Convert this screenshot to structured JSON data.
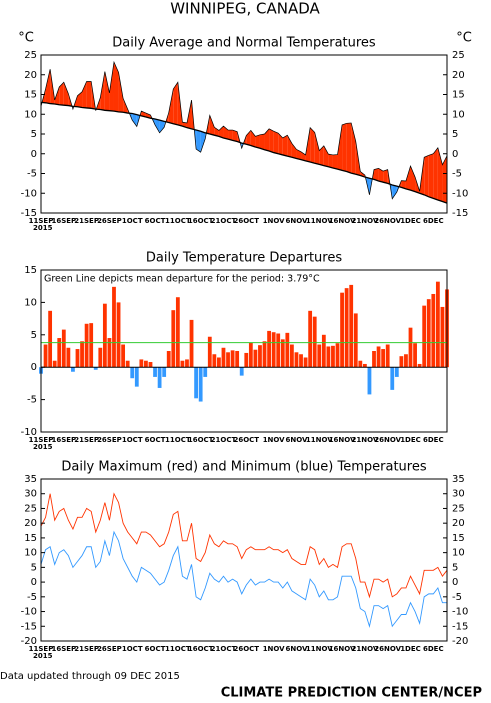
{
  "title": "WINNIPEG, CANADA",
  "chart_data": [
    {
      "type": "area",
      "title": "Daily Average and Normal Temperatures",
      "ylabel": "°C",
      "y2label": "°C",
      "right_axis": true,
      "x_year": "2015",
      "categories": [
        "11SEP",
        null,
        null,
        null,
        null,
        "16SEP",
        null,
        null,
        null,
        null,
        "21SEP",
        null,
        null,
        null,
        null,
        "26SEP",
        null,
        null,
        null,
        null,
        "1OCT",
        null,
        null,
        null,
        null,
        "6OCT",
        null,
        null,
        null,
        null,
        "11OCT",
        null,
        null,
        null,
        null,
        "16OCT",
        null,
        null,
        null,
        null,
        "21OCT",
        null,
        null,
        null,
        null,
        "26OCT",
        null,
        null,
        null,
        null,
        null,
        "1NOV",
        null,
        null,
        null,
        null,
        "6NOV",
        null,
        null,
        null,
        null,
        "11NOV",
        null,
        null,
        null,
        null,
        "16NOV",
        null,
        null,
        null,
        null,
        "21NOV",
        null,
        null,
        null,
        null,
        "26NOV",
        null,
        null,
        null,
        null,
        "1DEC",
        null,
        null,
        null,
        null,
        "6DEC",
        null,
        null,
        null
      ],
      "ylim": [
        -15,
        25
      ],
      "yticks": [
        -15,
        -10,
        -5,
        0,
        5,
        10,
        15,
        20,
        25
      ],
      "fill_above": "#ff3300",
      "fill_below": "#3399ff",
      "series": [
        {
          "color": "#000000",
          "values": [
            12.0,
            16.4,
            21.4,
            13.6,
            16.9,
            18.1,
            15.2,
            11.3,
            14.7,
            15.7,
            18.3,
            18.3,
            10.9,
            14.2,
            20.8,
            15.4,
            23.2,
            20.6,
            14.0,
            11.3,
            8.5,
            6.9,
            10.8,
            10.3,
            9.8,
            7.3,
            5.3,
            6.7,
            10.4,
            16.4,
            18.1,
            8.0,
            7.8,
            13.6,
            1.2,
            0.4,
            3.8,
            9.7,
            6.7,
            5.9,
            7.0,
            6.0,
            6.0,
            5.6,
            1.4,
            4.6,
            5.9,
            4.4,
            4.8,
            5.0,
            6.3,
            5.7,
            5.2,
            4.0,
            4.7,
            2.6,
            1.1,
            0.5,
            -0.3,
            6.6,
            5.4,
            0.8,
            2.0,
            -0.1,
            -0.3,
            -0.2,
            7.3,
            7.7,
            7.8,
            3.1,
            -4.5,
            -5.4,
            -10.4,
            -4.0,
            -3.7,
            -4.4,
            -4.0,
            -11.4,
            -9.7,
            -6.8,
            -6.9,
            -3.1,
            -5.9,
            -9.5,
            -0.9,
            -0.4,
            0.0,
            1.5,
            -2.8,
            -0.5
          ]
        },
        {
          "color": "#000000",
          "values": [
            13.0,
            12.9,
            12.7,
            12.6,
            12.4,
            12.3,
            12.2,
            12.0,
            11.9,
            11.7,
            11.6,
            11.5,
            11.3,
            11.2,
            11.0,
            10.9,
            10.8,
            10.6,
            10.5,
            10.3,
            10.2,
            9.9,
            9.6,
            9.3,
            9.0,
            8.8,
            8.5,
            8.2,
            7.9,
            7.6,
            7.3,
            7.0,
            6.6,
            6.3,
            6.0,
            5.7,
            5.3,
            5.0,
            4.7,
            4.4,
            4.0,
            3.7,
            3.4,
            3.1,
            2.7,
            2.4,
            2.1,
            1.7,
            1.4,
            1.0,
            0.7,
            0.3,
            0.0,
            -0.3,
            -0.6,
            -0.9,
            -1.2,
            -1.5,
            -1.8,
            -2.1,
            -2.4,
            -2.7,
            -3.0,
            -3.3,
            -3.6,
            -3.9,
            -4.2,
            -4.5,
            -4.9,
            -5.2,
            -5.5,
            -5.9,
            -6.2,
            -6.5,
            -6.9,
            -7.2,
            -7.5,
            -7.9,
            -8.2,
            -8.5,
            -8.9,
            -9.2,
            -9.6,
            -10.0,
            -10.4,
            -10.9,
            -11.3,
            -11.7,
            -12.1,
            -12.5
          ]
        }
      ]
    },
    {
      "type": "bar",
      "title": "Daily Temperature Departures",
      "right_axis": false,
      "x_year": "2015",
      "categories": [
        "11SEP",
        null,
        null,
        null,
        null,
        "16SEP",
        null,
        null,
        null,
        null,
        "21SEP",
        null,
        null,
        null,
        null,
        "26SEP",
        null,
        null,
        null,
        null,
        "1OCT",
        null,
        null,
        null,
        null,
        "6OCT",
        null,
        null,
        null,
        null,
        "11OCT",
        null,
        null,
        null,
        null,
        "16OCT",
        null,
        null,
        null,
        null,
        "21OCT",
        null,
        null,
        null,
        null,
        "26OCT",
        null,
        null,
        null,
        null,
        null,
        "1NOV",
        null,
        null,
        null,
        null,
        "6NOV",
        null,
        null,
        null,
        null,
        "11NOV",
        null,
        null,
        null,
        null,
        "16NOV",
        null,
        null,
        null,
        null,
        "21NOV",
        null,
        null,
        null,
        null,
        "26NOV",
        null,
        null,
        null,
        null,
        "1DEC",
        null,
        null,
        null,
        null,
        "6DEC",
        null,
        null,
        null
      ],
      "ylim": [
        -10,
        15
      ],
      "yticks": [
        -10,
        -5,
        0,
        5,
        10,
        15
      ],
      "color_positive": "#ff3300",
      "color_negative": "#3399ff",
      "values": [
        -1.0,
        3.5,
        8.7,
        1.0,
        4.5,
        5.8,
        3.0,
        -0.7,
        2.8,
        4.0,
        6.7,
        6.8,
        -0.4,
        3.0,
        9.8,
        4.5,
        12.4,
        10.0,
        3.5,
        1.0,
        -1.7,
        -3.0,
        1.2,
        1.0,
        0.8,
        -1.5,
        -3.2,
        -1.5,
        2.5,
        8.8,
        10.8,
        1.0,
        1.2,
        7.3,
        -4.8,
        -5.3,
        -1.5,
        4.7,
        2.0,
        1.5,
        3.0,
        2.3,
        2.6,
        2.5,
        -1.3,
        2.2,
        3.8,
        2.7,
        3.4,
        4.0,
        5.6,
        5.4,
        5.2,
        4.3,
        5.3,
        3.5,
        2.3,
        2.0,
        1.5,
        8.7,
        7.8,
        3.5,
        5.0,
        3.2,
        3.3,
        3.7,
        11.5,
        12.2,
        12.7,
        8.3,
        1.0,
        0.5,
        -4.2,
        2.5,
        3.2,
        2.8,
        3.5,
        -3.5,
        -1.5,
        1.7,
        2.0,
        6.1,
        3.7,
        0.5,
        9.5,
        10.5,
        11.3,
        13.2,
        9.3,
        12.0
      ],
      "mean_departure": 3.79,
      "mean_color": "#33cc33",
      "annotation": "Green Line depicts mean departure for the period: 3.79°C"
    },
    {
      "type": "line",
      "title": "Daily Maximum (red) and Minimum (blue) Temperatures",
      "right_axis": true,
      "x_year": "2015",
      "categories": [
        "11SEP",
        null,
        null,
        null,
        null,
        "16SEP",
        null,
        null,
        null,
        null,
        "21SEP",
        null,
        null,
        null,
        null,
        "26SEP",
        null,
        null,
        null,
        null,
        "1OCT",
        null,
        null,
        null,
        null,
        "6OCT",
        null,
        null,
        null,
        null,
        "11OCT",
        null,
        null,
        null,
        null,
        "16OCT",
        null,
        null,
        null,
        null,
        "21OCT",
        null,
        null,
        null,
        null,
        "26OCT",
        null,
        null,
        null,
        null,
        null,
        "1NOV",
        null,
        null,
        null,
        null,
        "6NOV",
        null,
        null,
        null,
        null,
        "11NOV",
        null,
        null,
        null,
        null,
        "16NOV",
        null,
        null,
        null,
        null,
        "21NOV",
        null,
        null,
        null,
        null,
        "26NOV",
        null,
        null,
        null,
        null,
        "1DEC",
        null,
        null,
        null,
        null,
        "6DEC",
        null,
        null,
        null
      ],
      "ylim": [
        -20,
        35
      ],
      "yticks": [
        -20,
        -15,
        -10,
        -5,
        0,
        5,
        10,
        15,
        20,
        25,
        30,
        35
      ],
      "series": [
        {
          "color": "#ff3300",
          "values": [
            19,
            22,
            30,
            21,
            24,
            25,
            21,
            18,
            22,
            22,
            25,
            24,
            17,
            21,
            27,
            21,
            30,
            27,
            20,
            17,
            15,
            13,
            17,
            17,
            16,
            14,
            12,
            13,
            17,
            23,
            24,
            14,
            14,
            20,
            8,
            7,
            10,
            16,
            13,
            12,
            14,
            13,
            13,
            12,
            8,
            11,
            12,
            11,
            11,
            11,
            12,
            11,
            11,
            10,
            11,
            8,
            7,
            6,
            6,
            12,
            11,
            6,
            8,
            5,
            6,
            5,
            12,
            13,
            13,
            8,
            0,
            0,
            -5,
            1,
            1,
            0,
            1,
            -5,
            -4,
            -2,
            -2,
            2,
            -1,
            -4,
            4,
            4,
            4,
            5,
            2,
            4
          ]
        },
        {
          "color": "#3399ff",
          "values": [
            6,
            11,
            12,
            6,
            10,
            11,
            9,
            5,
            7,
            9,
            12,
            12,
            5,
            7,
            14,
            9,
            17,
            14,
            8,
            5,
            2,
            0,
            5,
            4,
            3,
            1,
            -1,
            0,
            4,
            9,
            12,
            2,
            1,
            6,
            -5,
            -6,
            -2,
            3,
            1,
            0,
            2,
            0,
            1,
            0,
            -4,
            -1,
            1,
            -1,
            0,
            0,
            1,
            0,
            0,
            -2,
            0,
            -3,
            -4,
            -5,
            -6,
            1,
            -1,
            -5,
            -3,
            -6,
            -6,
            -5,
            2,
            2,
            2,
            -2,
            -9,
            -10,
            -15,
            -8,
            -8,
            -9,
            -8,
            -15,
            -13,
            -11,
            -11,
            -7,
            -10,
            -14,
            -5,
            -4,
            -4,
            -2,
            -7,
            -7
          ]
        }
      ]
    }
  ],
  "footer_note": "Data updated through 09 DEC 2015",
  "credit": "CLIMATE PREDICTION CENTER/NCEP"
}
